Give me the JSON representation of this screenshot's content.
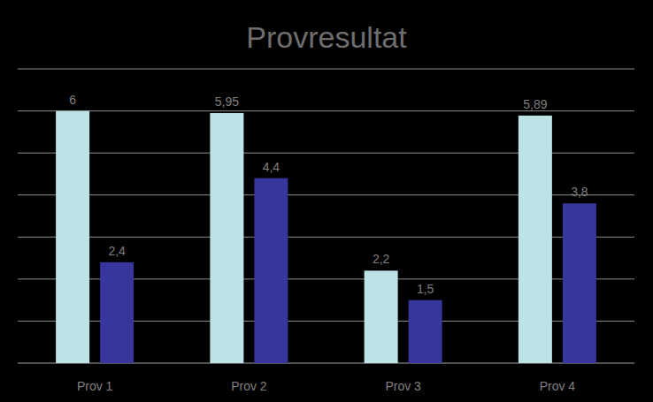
{
  "chart_data": {
    "type": "bar",
    "title": "Provresultat",
    "categories": [
      "Prov 1",
      "Prov 2",
      "Prov 3",
      "Prov 4"
    ],
    "series": [
      {
        "color": "#bde3e6",
        "values": [
          6,
          5.95,
          2.2,
          5.89
        ],
        "value_labels": [
          "6",
          "5,95",
          "2,2",
          "5,89"
        ]
      },
      {
        "color": "#36369c",
        "values": [
          2.4,
          4.4,
          1.5,
          3.8
        ],
        "value_labels": [
          "2,4",
          "4,4",
          "1,5",
          "3,8"
        ]
      }
    ],
    "ylim": [
      0,
      7
    ],
    "yticks": [
      0,
      1,
      2,
      3,
      4,
      5,
      6,
      7
    ],
    "grid": true,
    "data_labels": true,
    "tick_labels": false
  }
}
